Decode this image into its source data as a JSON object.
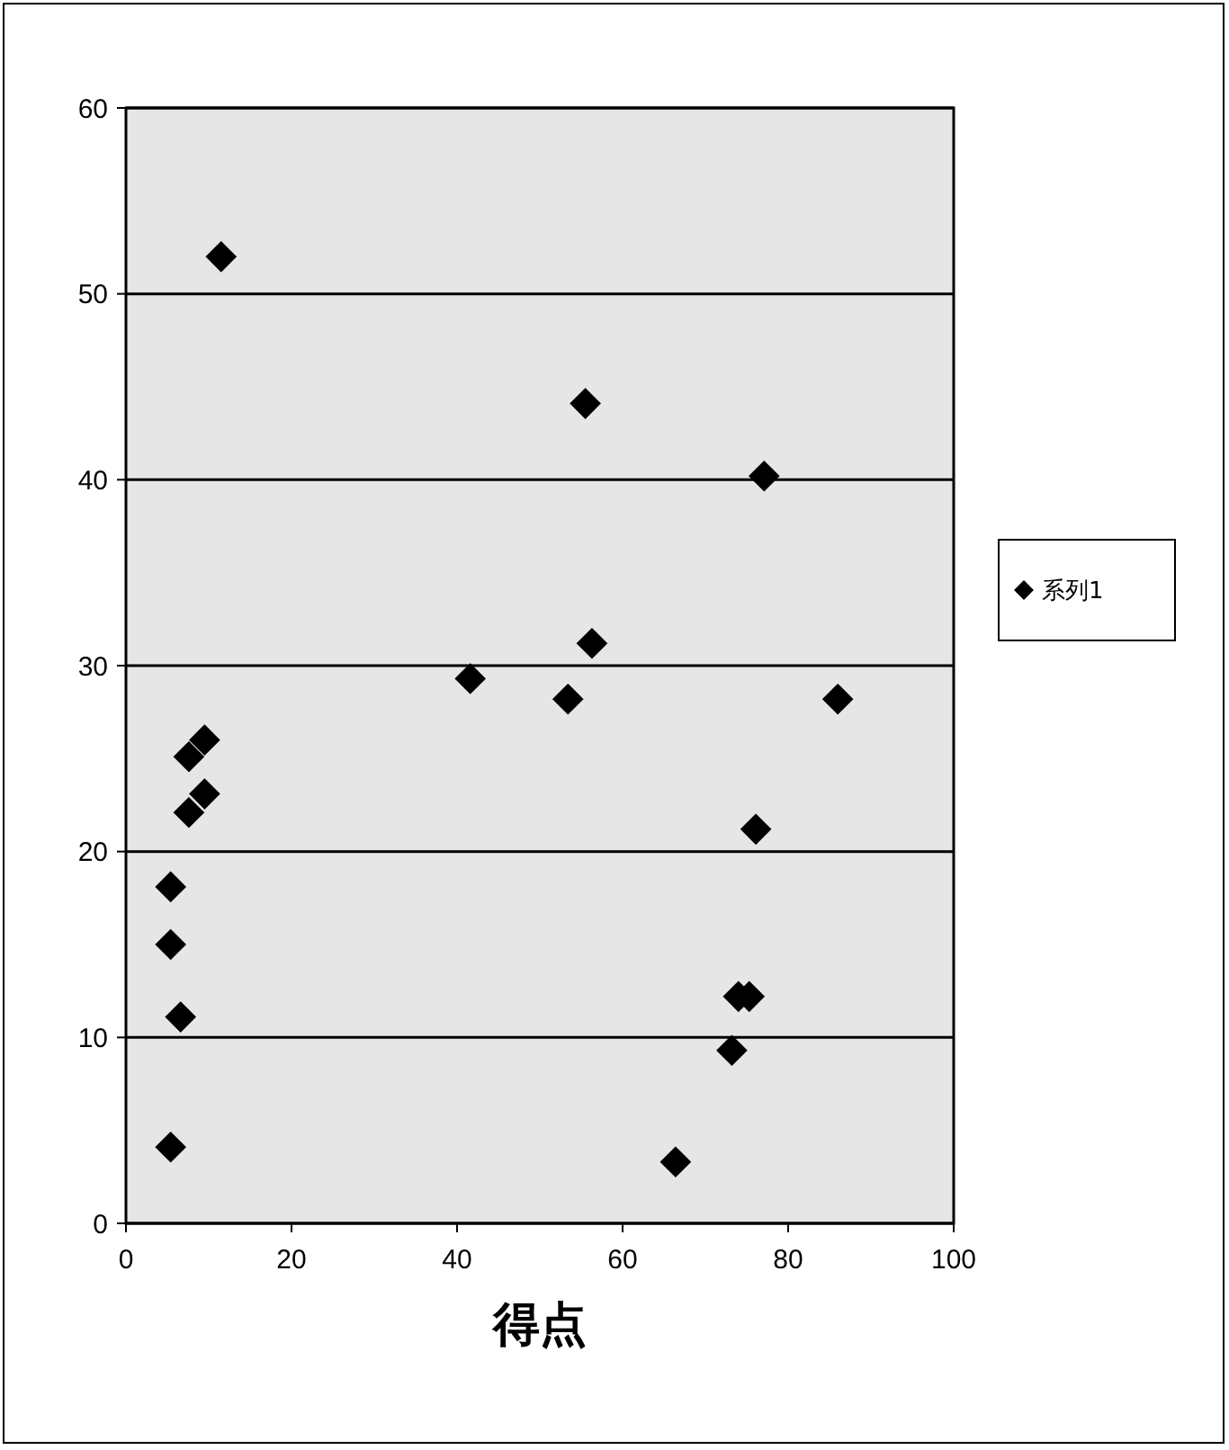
{
  "chart_data": {
    "type": "scatter",
    "xlabel": "得点",
    "x": [
      11.5,
      55.5,
      77.1,
      56.3,
      86,
      41.6,
      53.4,
      9.5,
      7.6,
      9.5,
      7.6,
      76.1,
      5.4,
      5.4,
      75.3,
      74,
      6.6,
      73.2,
      5.4,
      66.4
    ],
    "series": [
      {
        "name": "系列1",
        "color": "#000000",
        "values": [
          52,
          44.1,
          40.2,
          31.2,
          28.2,
          29.3,
          28.2,
          26,
          25.1,
          23.1,
          22.1,
          21.2,
          18.1,
          15,
          12.2,
          12.2,
          11.1,
          9.3,
          4.1,
          3.3
        ]
      }
    ],
    "xlim": [
      0,
      100
    ],
    "xticks": [
      0,
      20,
      40,
      60,
      80,
      100
    ],
    "ylim": [
      0,
      60
    ],
    "yticks": [
      0,
      10,
      20,
      30,
      40,
      50,
      60
    ],
    "grid": "y",
    "legend": "right",
    "marker": "diamond"
  }
}
